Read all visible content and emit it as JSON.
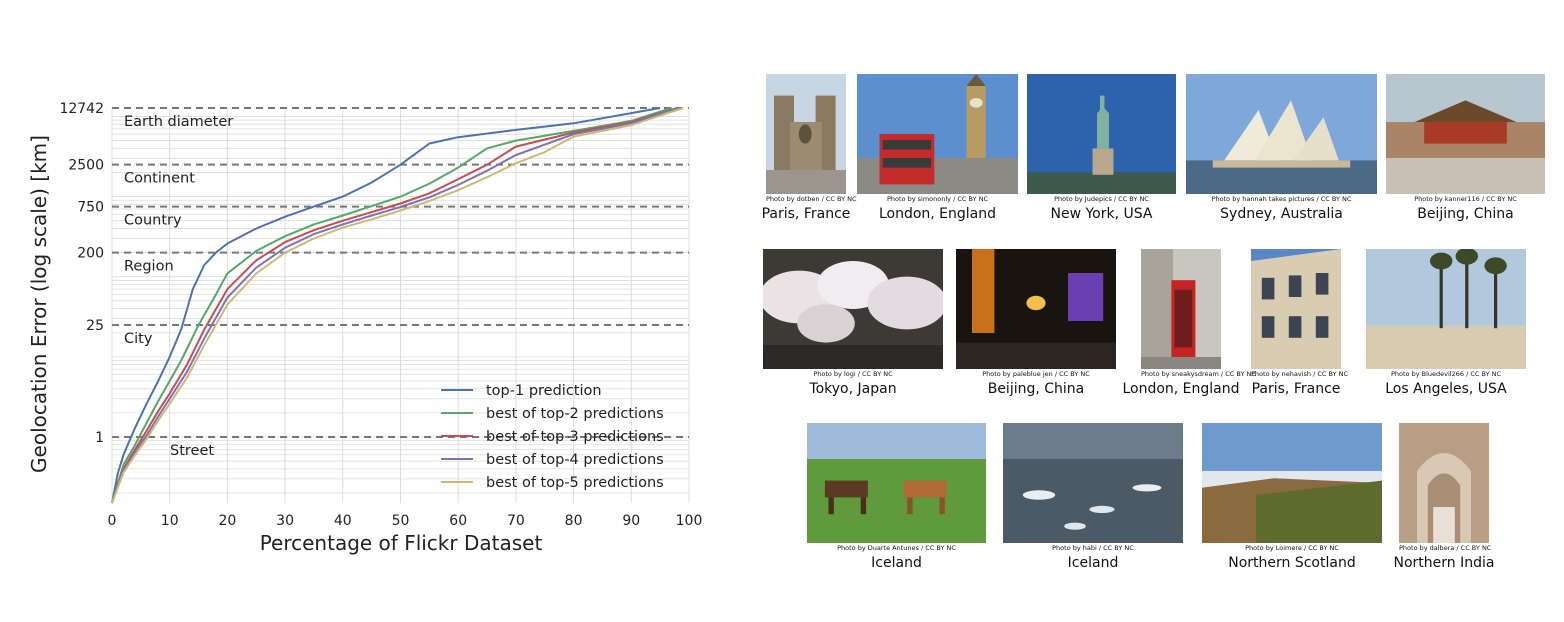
{
  "chart_data": {
    "type": "line",
    "xlabel": "Percentage of Flickr Dataset",
    "ylabel": "Geolocation Error (log scale) [km]",
    "xlim": [
      0,
      100
    ],
    "ylim": [
      0.15,
      12742
    ],
    "y_scale": "log",
    "grid": true,
    "legend_position": "lower-right",
    "x_ticks": [
      0,
      10,
      20,
      30,
      40,
      50,
      60,
      70,
      80,
      90,
      100
    ],
    "y_ticks": [
      {
        "value": 1,
        "label": "1"
      },
      {
        "value": 25,
        "label": "25"
      },
      {
        "value": 200,
        "label": "200"
      },
      {
        "value": 750,
        "label": "750"
      },
      {
        "value": 2500,
        "label": "2500"
      },
      {
        "value": 12742,
        "label": "12742"
      }
    ],
    "thresholds": [
      {
        "value": 12742,
        "label": "Earth diameter"
      },
      {
        "value": 2500,
        "label": "Continent"
      },
      {
        "value": 750,
        "label": "Country"
      },
      {
        "value": 200,
        "label": "Region"
      },
      {
        "value": 25,
        "label": "City"
      },
      {
        "value": 1,
        "label": "Street"
      }
    ],
    "series": [
      {
        "name": "top-1 prediction",
        "color": "#4c72b0",
        "x": [
          0,
          1,
          2,
          4,
          6,
          8,
          10,
          12,
          14,
          16,
          18,
          20,
          25,
          30,
          35,
          40,
          45,
          50,
          55,
          60,
          70,
          80,
          90,
          95
        ],
        "y": [
          0.15,
          0.35,
          0.6,
          1.3,
          2.6,
          5,
          10,
          22,
          70,
          140,
          200,
          260,
          400,
          560,
          750,
          1000,
          1500,
          2500,
          4600,
          5500,
          6800,
          8200,
          11000,
          12742
        ]
      },
      {
        "name": "best of top-2 predictions",
        "color": "#55a868",
        "x": [
          0,
          2,
          4,
          6,
          8,
          10,
          12,
          15,
          18,
          20,
          25,
          30,
          35,
          40,
          45,
          50,
          55,
          60,
          65,
          70,
          80,
          90,
          97
        ],
        "y": [
          0.15,
          0.45,
          0.8,
          1.5,
          2.8,
          5,
          9,
          25,
          60,
          110,
          210,
          320,
          450,
          580,
          760,
          1000,
          1450,
          2300,
          4000,
          5000,
          6600,
          8800,
          12742
        ]
      },
      {
        "name": "best of top-3 predictions",
        "color": "#c44e52",
        "x": [
          0,
          2,
          4,
          6,
          8,
          10,
          13,
          16,
          20,
          25,
          30,
          35,
          40,
          45,
          50,
          55,
          60,
          65,
          70,
          80,
          90,
          98
        ],
        "y": [
          0.15,
          0.4,
          0.7,
          1.2,
          2.1,
          3.5,
          8,
          22,
          70,
          160,
          270,
          380,
          500,
          640,
          820,
          1100,
          1650,
          2500,
          4200,
          6300,
          8500,
          12742
        ]
      },
      {
        "name": "best of top-4 predictions",
        "color": "#8172b2",
        "x": [
          0,
          2,
          4,
          6,
          8,
          10,
          13,
          16,
          20,
          25,
          30,
          35,
          40,
          45,
          50,
          55,
          60,
          65,
          70,
          80,
          90,
          98
        ],
        "y": [
          0.15,
          0.38,
          0.65,
          1.05,
          1.8,
          3,
          6.5,
          17,
          55,
          130,
          230,
          340,
          450,
          580,
          740,
          980,
          1400,
          2100,
          3300,
          6000,
          8200,
          12742
        ]
      },
      {
        "name": "best of top-5 predictions",
        "color": "#ccb974",
        "x": [
          0,
          2,
          4,
          6,
          8,
          10,
          13,
          16,
          20,
          25,
          30,
          35,
          40,
          45,
          50,
          55,
          60,
          65,
          70,
          75,
          80,
          90,
          99
        ],
        "y": [
          0.15,
          0.36,
          0.6,
          0.95,
          1.6,
          2.6,
          5.5,
          14,
          45,
          110,
          200,
          300,
          410,
          520,
          670,
          880,
          1200,
          1750,
          2600,
          3600,
          5600,
          7800,
          12742
        ]
      }
    ]
  },
  "gallery": [
    {
      "caption": "Paris, France",
      "credit": "Photo by dotben / CC BY NC",
      "icon": "cathedral-photo"
    },
    {
      "caption": "London, England",
      "credit": "Photo by simononly / CC BY NC",
      "icon": "big-ben-bus-photo"
    },
    {
      "caption": "New York, USA",
      "credit": "Photo by Judepics / CC BY NC",
      "icon": "statue-of-liberty-photo"
    },
    {
      "caption": "Sydney, Australia",
      "credit": "Photo by hannah takes pictures / CC BY NC",
      "icon": "opera-house-photo"
    },
    {
      "caption": "Beijing, China",
      "credit": "Photo by kanner116 / CC BY NC",
      "icon": "forbidden-city-photo"
    },
    {
      "caption": "Tokyo, Japan",
      "credit": "Photo by logi / CC BY NC",
      "icon": "cherry-blossom-photo"
    },
    {
      "caption": "Beijing, China",
      "credit": "Photo by paleblue jen / CC BY NC",
      "icon": "night-street-photo"
    },
    {
      "caption": "London, England",
      "credit": "Photo by sneakysdream / CC BY NC",
      "icon": "phone-booth-photo"
    },
    {
      "caption": "Paris, France",
      "credit": "Photo by nehavish / CC BY NC",
      "icon": "paris-building-photo"
    },
    {
      "caption": "Los Angeles, USA",
      "credit": "Photo by Bluedevil266 / CC BY NC",
      "icon": "palm-beach-photo"
    },
    {
      "caption": "Iceland",
      "credit": "Photo by Duarte Antunes / CC BY NC",
      "icon": "horses-photo"
    },
    {
      "caption": "Iceland",
      "credit": "Photo by habi / CC BY NC",
      "icon": "glacier-lagoon-photo"
    },
    {
      "caption": "Northern Scotland",
      "credit": "Photo by Loimere / CC BY NC",
      "icon": "moorland-photo"
    },
    {
      "caption": "Northern India",
      "credit": "Photo by dalbera / CC BY NC",
      "icon": "carved-palace-photo"
    }
  ]
}
